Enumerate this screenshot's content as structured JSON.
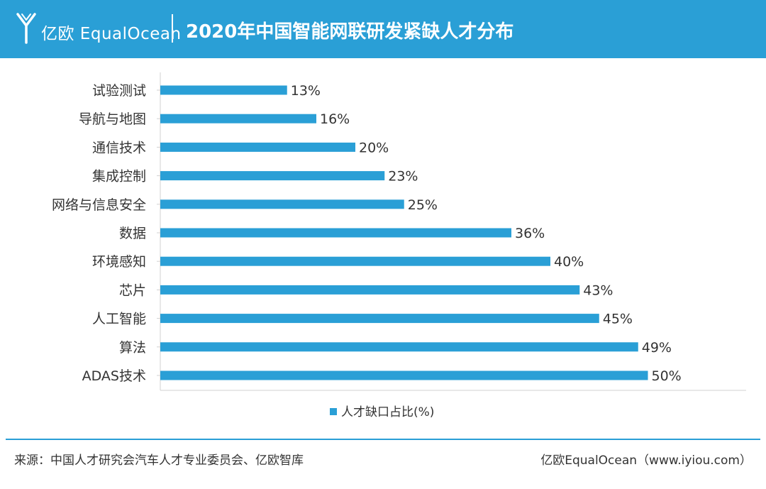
{
  "header": {
    "logo_text": "亿欧 EqualOcean",
    "title": "2020年中国智能网联研发紧缺人才分布"
  },
  "colors": {
    "accent": "#2a9fd6",
    "bar": "#2a9fd6"
  },
  "chart_data": {
    "type": "bar",
    "orientation": "horizontal",
    "title": "2020年中国智能网联研发紧缺人才分布",
    "categories": [
      "试验测试",
      "导航与地图",
      "通信技术",
      "集成控制",
      "网络与信息安全",
      "数据",
      "环境感知",
      "芯片",
      "人工智能",
      "算法",
      "ADAS技术"
    ],
    "series": [
      {
        "name": "人才缺口占比(%)",
        "values": [
          13,
          16,
          20,
          23,
          25,
          36,
          40,
          43,
          45,
          49,
          50
        ]
      }
    ],
    "value_suffix": "%",
    "xlim": [
      0,
      60
    ],
    "grid": false,
    "legend": "bottom-center"
  },
  "footer": {
    "source": "来源：中国人才研究会汽车人才专业委员会、亿欧智库",
    "brand": "亿欧EqualOcean（www.iyiou.com）"
  }
}
